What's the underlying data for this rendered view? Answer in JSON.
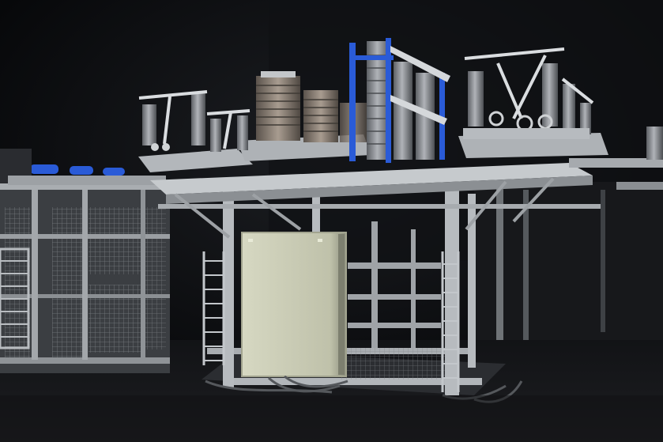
{
  "scene": {
    "subject": "modular-substation-switchgear",
    "colors": {
      "background": "#0b0c0e",
      "floor": "#141518",
      "steel": "#b9bcc0",
      "steel_dark": "#6f7377",
      "insulator": "#8e9196",
      "porcelain": "#8a8078",
      "cabinet": "#c9cbb4",
      "cabinet_shadow": "#8d8f7e",
      "accent_blue": "#2a5bd7"
    }
  }
}
